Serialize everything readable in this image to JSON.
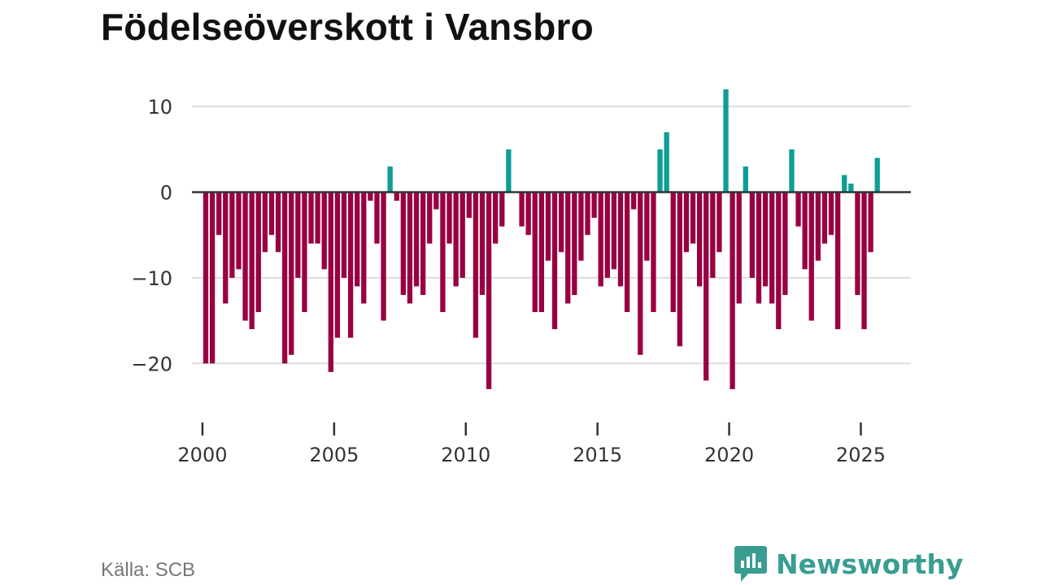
{
  "title": "Födelseöverskott i Vansbro",
  "source": "Källa: SCB",
  "brand": {
    "name": "Newsworthy",
    "icon": "newsworthy-logo-icon"
  },
  "colors": {
    "positive": "#0d9e94",
    "negative": "#990042",
    "grid": "#dddddd",
    "zero": "#333333",
    "brand": "#3a9d92"
  },
  "chart_data": {
    "type": "bar",
    "title": "Födelseöverskott i Vansbro",
    "xlabel": "",
    "ylabel": "",
    "ylim": [
      -25,
      12
    ],
    "xlim": [
      1999.6,
      2026.9
    ],
    "grid": true,
    "yticks": [
      {
        "value": 10,
        "label": "10"
      },
      {
        "value": 0,
        "label": "0"
      },
      {
        "value": -10,
        "label": "−10"
      },
      {
        "value": -20,
        "label": "−20"
      }
    ],
    "xticks": [
      {
        "value": 2000,
        "label": "2000"
      },
      {
        "value": 2005,
        "label": "2005"
      },
      {
        "value": 2010,
        "label": "2010"
      },
      {
        "value": 2015,
        "label": "2015"
      },
      {
        "value": 2020,
        "label": "2020"
      },
      {
        "value": 2025,
        "label": "2025"
      }
    ],
    "frequency": "monthly-period",
    "start": 2000.0,
    "step": 0.25,
    "values": [
      -20,
      -20,
      -5,
      -13,
      -10,
      -9,
      -15,
      -16,
      -14,
      -7,
      -5,
      -7,
      -20,
      -19,
      -10,
      -14,
      -6,
      -6,
      -9,
      -21,
      -17,
      -10,
      -17,
      -11,
      -13,
      -1,
      -6,
      -15,
      3,
      -1,
      -12,
      -13,
      -11,
      -12,
      -6,
      -2,
      -14,
      -6,
      -11,
      -10,
      -3,
      -17,
      -12,
      -23,
      -6,
      -4,
      5,
      0,
      -4,
      -5,
      -14,
      -14,
      -8,
      -16,
      -7,
      -13,
      -12,
      -8,
      -5,
      -3,
      -11,
      -10,
      -9,
      -11,
      -14,
      -2,
      -19,
      -8,
      -14,
      5,
      7,
      -14,
      -18,
      -7,
      -6,
      -11,
      -22,
      -10,
      -7,
      12,
      -23,
      -13,
      3,
      -10,
      -13,
      -11,
      -13,
      -16,
      -12,
      5,
      -4,
      -9,
      -15,
      -8,
      -6,
      -5,
      -16,
      2,
      1,
      -12,
      -16,
      -7,
      4
    ]
  }
}
